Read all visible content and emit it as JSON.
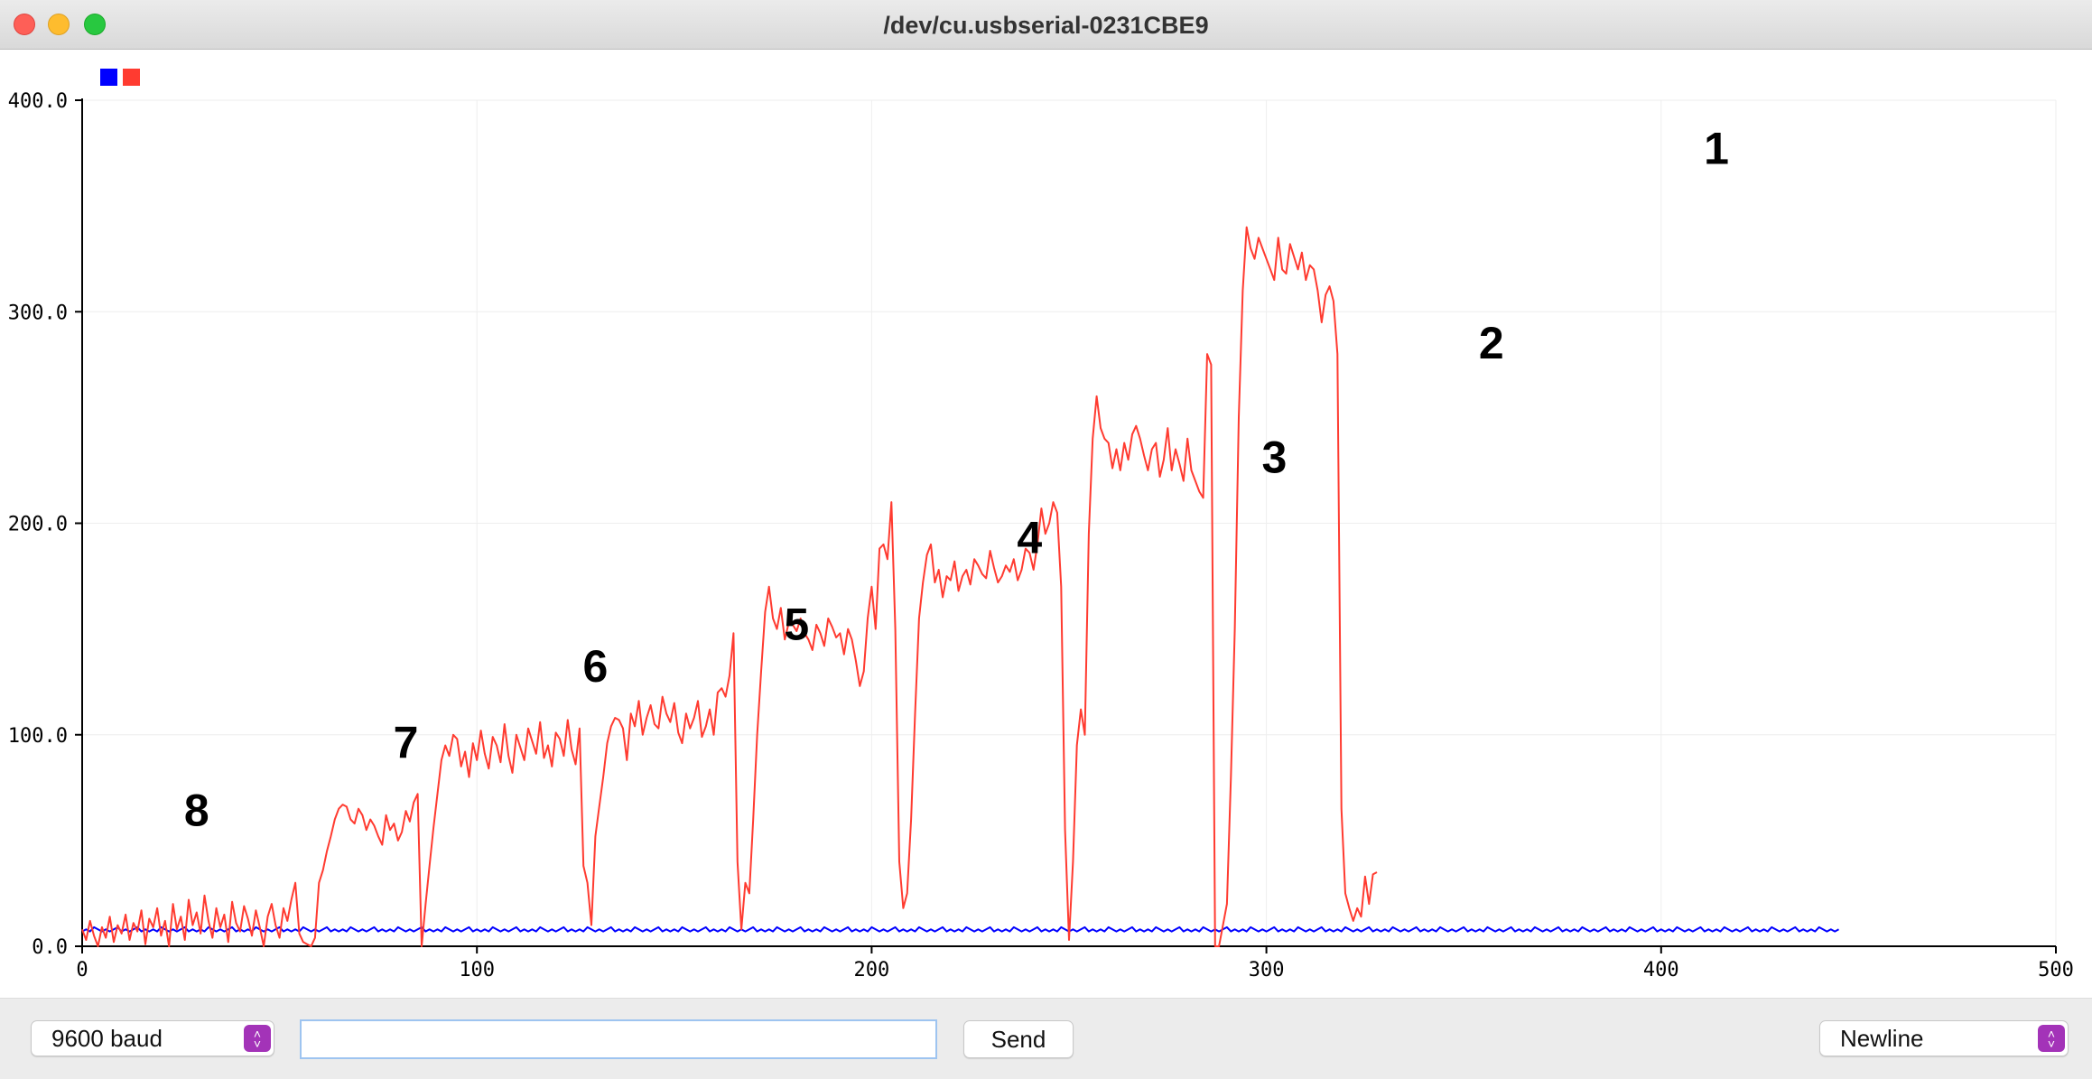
{
  "window": {
    "title": "/dev/cu.usbserial-0231CBE9"
  },
  "toolbar": {
    "baud": "9600 baud",
    "input_value": "",
    "send_label": "Send",
    "line_ending": "Newline"
  },
  "colors": {
    "series1": "#0000ff",
    "series2": "#ff3b30",
    "grid": "#eeeeee",
    "stepper": "#a333b8"
  },
  "chart_data": {
    "type": "line",
    "title": "",
    "xlim": [
      0,
      500
    ],
    "ylim": [
      0,
      400
    ],
    "x_ticks": [
      0,
      100,
      200,
      300,
      400,
      500
    ],
    "y_ticks": [
      0,
      100,
      200,
      300,
      400
    ],
    "x_tick_labels": [
      "0",
      "100",
      "200",
      "300",
      "400",
      "500"
    ],
    "y_tick_labels": [
      "0.0",
      "100.0",
      "200.0",
      "300.0",
      "400.0"
    ],
    "grid": true,
    "legend_position": "top-left",
    "annotations": [
      {
        "text": "8",
        "x": 29,
        "y": 57
      },
      {
        "text": "7",
        "x": 82,
        "y": 89
      },
      {
        "text": "6",
        "x": 130,
        "y": 125
      },
      {
        "text": "5",
        "x": 181,
        "y": 145
      },
      {
        "text": "4",
        "x": 240,
        "y": 186
      },
      {
        "text": "3",
        "x": 302,
        "y": 224
      },
      {
        "text": "2",
        "x": 357,
        "y": 278
      },
      {
        "text": "1",
        "x": 414,
        "y": 370
      }
    ],
    "series": [
      {
        "name": "",
        "color": "#0000ff",
        "values": [
          7,
          8,
          7,
          9,
          8,
          7,
          8,
          7,
          8,
          9,
          7,
          8,
          7,
          8,
          9,
          7,
          8,
          7,
          8,
          7,
          9,
          8,
          7,
          8,
          7,
          8,
          9,
          7,
          8,
          7,
          8,
          7,
          9,
          8,
          7,
          8,
          7,
          8,
          9,
          7,
          8,
          7,
          8,
          7,
          9,
          8,
          7,
          8,
          7,
          8,
          9,
          7,
          8,
          7,
          8,
          7,
          9,
          8,
          7,
          8,
          7,
          8,
          9,
          7,
          8,
          7,
          8,
          7,
          9,
          8,
          7,
          8,
          7,
          8,
          9,
          7,
          8,
          7,
          8,
          7,
          9,
          8,
          7,
          8,
          7,
          8,
          9,
          7,
          8,
          7,
          8,
          7,
          9,
          8,
          7,
          8,
          7,
          8,
          9,
          7,
          8,
          7,
          8,
          7,
          9,
          8,
          7,
          8,
          7,
          8,
          9,
          7,
          8,
          7,
          8,
          7,
          9,
          8,
          7,
          8,
          7,
          8,
          9,
          7,
          8,
          7,
          8,
          7,
          9,
          8,
          7,
          8,
          7,
          8,
          9,
          7,
          8,
          7,
          8,
          7,
          9,
          8,
          7,
          8,
          7,
          8,
          9,
          7,
          8,
          7,
          8,
          7,
          9,
          8,
          7,
          8,
          7,
          8,
          9,
          7,
          8,
          7,
          8,
          7,
          9,
          8,
          7,
          8,
          7,
          8,
          9,
          7,
          8,
          7,
          8,
          7,
          9,
          8,
          7,
          8,
          7,
          8,
          9,
          7,
          8,
          7,
          8,
          7,
          9,
          8,
          7,
          8,
          7,
          8,
          9,
          7,
          8,
          7,
          8,
          7,
          9,
          8,
          7,
          8,
          7,
          8,
          9,
          7,
          8,
          7,
          8,
          7,
          9,
          8,
          7,
          8,
          7,
          8,
          9,
          7,
          8,
          7,
          8,
          7,
          9,
          8,
          7,
          8,
          7,
          8,
          9,
          7,
          8,
          7,
          8,
          7,
          9,
          8,
          7,
          8,
          7,
          8,
          9,
          7,
          8,
          7,
          8,
          7,
          9,
          8,
          7,
          8,
          7,
          8,
          9,
          7,
          8,
          7,
          8,
          7,
          9,
          8,
          7,
          8,
          7,
          8,
          9,
          7,
          8,
          7,
          8,
          7,
          9,
          8,
          7,
          8,
          7,
          8,
          9,
          7,
          8,
          7,
          8,
          7,
          9,
          8,
          7,
          8,
          7,
          8,
          9,
          7,
          8,
          7,
          8,
          7,
          9,
          8,
          7,
          8,
          7,
          8,
          9,
          7,
          8,
          7,
          8,
          7,
          9,
          8,
          7,
          8,
          7,
          8,
          9,
          7,
          8,
          7,
          8,
          7,
          9,
          8,
          7,
          8,
          7,
          8,
          9,
          7,
          8,
          7,
          8,
          7,
          9,
          8,
          7,
          8,
          7,
          8,
          9,
          7,
          8,
          7,
          8,
          7,
          9,
          8,
          7,
          8,
          7,
          8,
          9,
          7,
          8,
          7,
          8,
          7,
          9,
          8,
          7,
          8,
          7,
          8,
          9,
          7,
          8,
          7,
          8,
          7,
          9,
          8,
          7,
          8,
          7,
          8,
          9,
          7,
          8,
          7,
          8,
          7,
          9,
          8,
          7,
          8,
          7,
          8,
          9,
          7,
          8,
          7,
          8,
          7,
          9,
          8,
          7,
          8,
          7,
          8,
          9,
          7,
          8,
          7,
          8,
          7,
          9,
          8,
          7,
          8,
          7,
          8,
          9,
          7,
          8,
          7,
          8,
          7,
          9,
          8,
          7,
          8,
          7,
          8,
          9,
          7,
          8,
          7,
          8,
          7,
          9,
          8,
          7,
          8,
          7,
          8,
          9,
          7,
          8,
          7,
          8,
          7,
          9,
          8,
          7,
          8,
          7,
          8
        ]
      },
      {
        "name": "",
        "color": "#ff3b30",
        "values": [
          8,
          3,
          12,
          5,
          0,
          9,
          4,
          14,
          2,
          10,
          6,
          15,
          3,
          11,
          7,
          17,
          1,
          13,
          9,
          18,
          5,
          12,
          0,
          20,
          8,
          14,
          3,
          22,
          10,
          16,
          6,
          24,
          12,
          4,
          18,
          9,
          15,
          2,
          21,
          11,
          7,
          19,
          13,
          5,
          17,
          9,
          0,
          14,
          20,
          10,
          4,
          18,
          12,
          22,
          30,
          6,
          2,
          1,
          0,
          4,
          30,
          36,
          45,
          52,
          60,
          65,
          67,
          66,
          60,
          58,
          65,
          62,
          55,
          60,
          57,
          52,
          48,
          62,
          55,
          58,
          50,
          54,
          64,
          59,
          68,
          72,
          0,
          20,
          38,
          56,
          72,
          88,
          95,
          90,
          100,
          98,
          85,
          92,
          80,
          96,
          88,
          102,
          91,
          84,
          99,
          95,
          87,
          105,
          90,
          82,
          100,
          94,
          88,
          103,
          97,
          91,
          106,
          89,
          95,
          85,
          101,
          98,
          90,
          107,
          93,
          86,
          103,
          38,
          30,
          10,
          52,
          66,
          80,
          96,
          104,
          108,
          107,
          103,
          88,
          110,
          104,
          116,
          100,
          108,
          114,
          105,
          103,
          118,
          110,
          106,
          115,
          101,
          96,
          110,
          103,
          108,
          116,
          99,
          104,
          112,
          100,
          120,
          122,
          118,
          128,
          148,
          40,
          8,
          30,
          25,
          60,
          100,
          130,
          158,
          170,
          155,
          150,
          160,
          145,
          153,
          152,
          149,
          155,
          148,
          145,
          140,
          152,
          148,
          142,
          155,
          151,
          146,
          148,
          138,
          150,
          145,
          135,
          123,
          130,
          155,
          170,
          150,
          188,
          190,
          183,
          210,
          150,
          40,
          18,
          25,
          60,
          110,
          155,
          172,
          185,
          190,
          172,
          178,
          165,
          175,
          173,
          182,
          168,
          175,
          178,
          171,
          183,
          180,
          176,
          174,
          187,
          179,
          172,
          175,
          180,
          177,
          183,
          173,
          178,
          188,
          186,
          178,
          190,
          207,
          195,
          200,
          210,
          205,
          170,
          55,
          3,
          40,
          95,
          112,
          100,
          195,
          240,
          260,
          245,
          240,
          238,
          226,
          235,
          225,
          238,
          230,
          242,
          246,
          240,
          232,
          225,
          235,
          238,
          222,
          230,
          245,
          225,
          235,
          228,
          220,
          240,
          225,
          220,
          215,
          212,
          280,
          275,
          0,
          0,
          10,
          20,
          80,
          150,
          250,
          310,
          340,
          330,
          325,
          335,
          330,
          325,
          320,
          315,
          335,
          320,
          318,
          332,
          326,
          320,
          328,
          315,
          322,
          320,
          310,
          295,
          308,
          312,
          305,
          280,
          65,
          25,
          18,
          12,
          18,
          14,
          33,
          20,
          34,
          35
        ]
      }
    ]
  }
}
